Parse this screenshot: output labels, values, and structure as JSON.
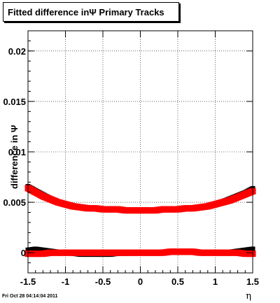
{
  "chart_data": {
    "type": "scatter",
    "title": "Fitted difference inΨ   Primary Tracks",
    "xlabel": "η",
    "ylabel": "difference in Ψ",
    "xlim": [
      -1.5,
      1.5
    ],
    "ylim": [
      -0.002,
      0.022
    ],
    "x_ticks": [
      "-1.5",
      "-1",
      "-0.5",
      "0",
      "0.5",
      "1",
      "1.5"
    ],
    "x_tick_values": [
      -1.5,
      -1,
      -0.5,
      0,
      0.5,
      1,
      1.5
    ],
    "y_ticks": [
      "0",
      "0.005",
      "0.01",
      "0.015",
      "0.02"
    ],
    "y_tick_values": [
      0,
      0.005,
      0.01,
      0.015,
      0.02
    ],
    "grid": true,
    "series": [
      {
        "color": "#000000",
        "x": [
          -1.5,
          -1.4,
          -1.3,
          -1.2,
          -1.1,
          -1.0,
          -0.9,
          -0.8,
          -0.7,
          -0.6,
          -0.5,
          -0.4,
          -0.3,
          -0.2,
          -0.1,
          0.0,
          0.1,
          0.2,
          0.3,
          0.4,
          0.5,
          0.6,
          0.7,
          0.8,
          0.9,
          1.0,
          1.1,
          1.2,
          1.3,
          1.4,
          1.5
        ],
        "y": [
          0.0066,
          0.0062,
          0.0058,
          0.0054,
          0.0051,
          0.0049,
          0.0047,
          0.0046,
          0.0045,
          0.0044,
          0.0044,
          0.0043,
          0.0043,
          0.0043,
          0.0043,
          0.0042,
          0.0043,
          0.0043,
          0.0043,
          0.0043,
          0.0044,
          0.0044,
          0.0045,
          0.0046,
          0.0047,
          0.0049,
          0.0051,
          0.0054,
          0.0057,
          0.006,
          0.0064
        ]
      },
      {
        "color": "#000000",
        "x": [
          -1.5,
          -1.4,
          -1.3,
          -1.2,
          -1.1,
          -1.0,
          -0.9,
          -0.8,
          -0.7,
          -0.6,
          -0.5,
          -0.4,
          -0.3,
          -0.2,
          -0.1,
          0.0,
          0.1,
          0.2,
          0.3,
          0.4,
          0.5,
          0.6,
          0.7,
          0.8,
          0.9,
          1.0,
          1.1,
          1.2,
          1.3,
          1.4,
          1.5
        ],
        "y": [
          0.0003,
          0.0004,
          0.0003,
          0.0002,
          0.0001,
          0.0,
          -0.0001,
          -0.0002,
          -0.0002,
          -0.0002,
          -0.0002,
          -0.0002,
          -0.0001,
          -0.0001,
          0.0,
          0.0,
          0.0,
          0.0,
          0.0,
          0.0,
          0.0,
          0.0,
          0.0,
          0.0,
          0.0,
          0.0,
          0.0,
          0.0001,
          0.0002,
          0.0003,
          0.0004
        ]
      },
      {
        "color": "#ff0000",
        "x": [
          -1.5,
          -1.4,
          -1.3,
          -1.2,
          -1.1,
          -1.0,
          -0.9,
          -0.8,
          -0.7,
          -0.6,
          -0.5,
          -0.4,
          -0.3,
          -0.2,
          -0.1,
          0.0,
          0.1,
          0.2,
          0.3,
          0.4,
          0.5,
          0.6,
          0.7,
          0.8,
          0.9,
          1.0,
          1.1,
          1.2,
          1.3,
          1.4,
          1.5
        ],
        "y": [
          0.0064,
          0.006,
          0.0056,
          0.0053,
          0.005,
          0.0048,
          0.0046,
          0.0045,
          0.0044,
          0.0044,
          0.0043,
          0.0043,
          0.0043,
          0.0042,
          0.0042,
          0.0042,
          0.0042,
          0.0042,
          0.0043,
          0.0043,
          0.0043,
          0.0044,
          0.0044,
          0.0045,
          0.0046,
          0.0048,
          0.005,
          0.0052,
          0.0055,
          0.0058,
          0.0061
        ]
      },
      {
        "color": "#ff0000",
        "x": [
          -1.5,
          -1.4,
          -1.3,
          -1.2,
          -1.1,
          -1.0,
          -0.9,
          -0.8,
          -0.7,
          -0.6,
          -0.5,
          -0.4,
          -0.3,
          -0.2,
          -0.1,
          0.0,
          0.1,
          0.2,
          0.3,
          0.4,
          0.5,
          0.6,
          0.7,
          0.8,
          0.9,
          1.0,
          1.1,
          1.2,
          1.3,
          1.4,
          1.5
        ],
        "y": [
          -0.0001,
          -0.0001,
          -0.0001,
          0.0,
          0.0,
          0.0,
          0.0,
          0.0,
          0.0,
          0.0,
          0.0,
          0.0,
          0.0,
          0.0,
          0.0,
          0.0,
          0.0,
          0.0,
          0.0,
          0.0001,
          0.0001,
          0.0001,
          0.0001,
          0.0,
          0.0,
          0.0,
          0.0,
          0.0,
          0.0,
          -0.0001,
          -0.0001
        ]
      }
    ]
  },
  "footer": {
    "timestamp": "Fri Oct 28 04:14:04 2011"
  }
}
